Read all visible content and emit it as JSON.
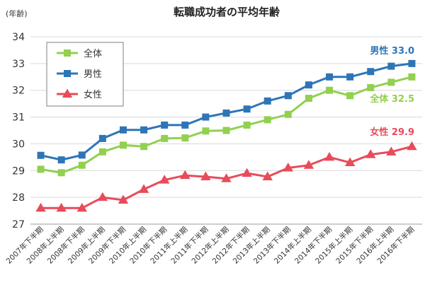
{
  "chart_data": {
    "type": "line",
    "title": "転職成功者の平均年齢",
    "y_unit_label": "(年齢)",
    "ylim": [
      27,
      34
    ],
    "yticks": [
      27,
      28,
      29,
      30,
      31,
      32,
      33,
      34
    ],
    "grid": true,
    "legend_position": "top-left",
    "categories": [
      "2007年下半期",
      "2008年上半期",
      "2008年下半期",
      "2009年上半期",
      "2009年下半期",
      "2010年上半期",
      "2010年下半期",
      "2011年上半期",
      "2011年下半期",
      "2012年上半期",
      "2012年下半期",
      "2013年上半期",
      "2013年下半期",
      "2014年上半期",
      "2014年下半期",
      "2015年上半期",
      "2015年下半期",
      "2016年上半期",
      "2016年下半期"
    ],
    "series": [
      {
        "name": "全体",
        "color": "#92d050",
        "marker": "square",
        "values": [
          29.05,
          28.92,
          29.2,
          29.7,
          29.95,
          29.9,
          30.2,
          30.22,
          30.48,
          30.5,
          30.7,
          30.9,
          31.1,
          31.7,
          32.0,
          31.8,
          32.1,
          32.3,
          32.5
        ],
        "end_label": "全体 32.5"
      },
      {
        "name": "男性",
        "color": "#2e75b6",
        "marker": "square",
        "values": [
          29.57,
          29.4,
          29.58,
          30.2,
          30.52,
          30.52,
          30.7,
          30.7,
          31.0,
          31.15,
          31.3,
          31.6,
          31.8,
          32.2,
          32.5,
          32.5,
          32.7,
          32.9,
          33.0
        ],
        "end_label": "男性 33.0"
      },
      {
        "name": "女性",
        "color": "#e84b5a",
        "marker": "triangle",
        "values": [
          27.6,
          27.6,
          27.6,
          28.0,
          27.9,
          28.3,
          28.65,
          28.82,
          28.77,
          28.7,
          28.9,
          28.77,
          29.1,
          29.2,
          29.5,
          29.3,
          29.6,
          29.7,
          29.9
        ],
        "end_label": "女性 29.9"
      }
    ]
  }
}
